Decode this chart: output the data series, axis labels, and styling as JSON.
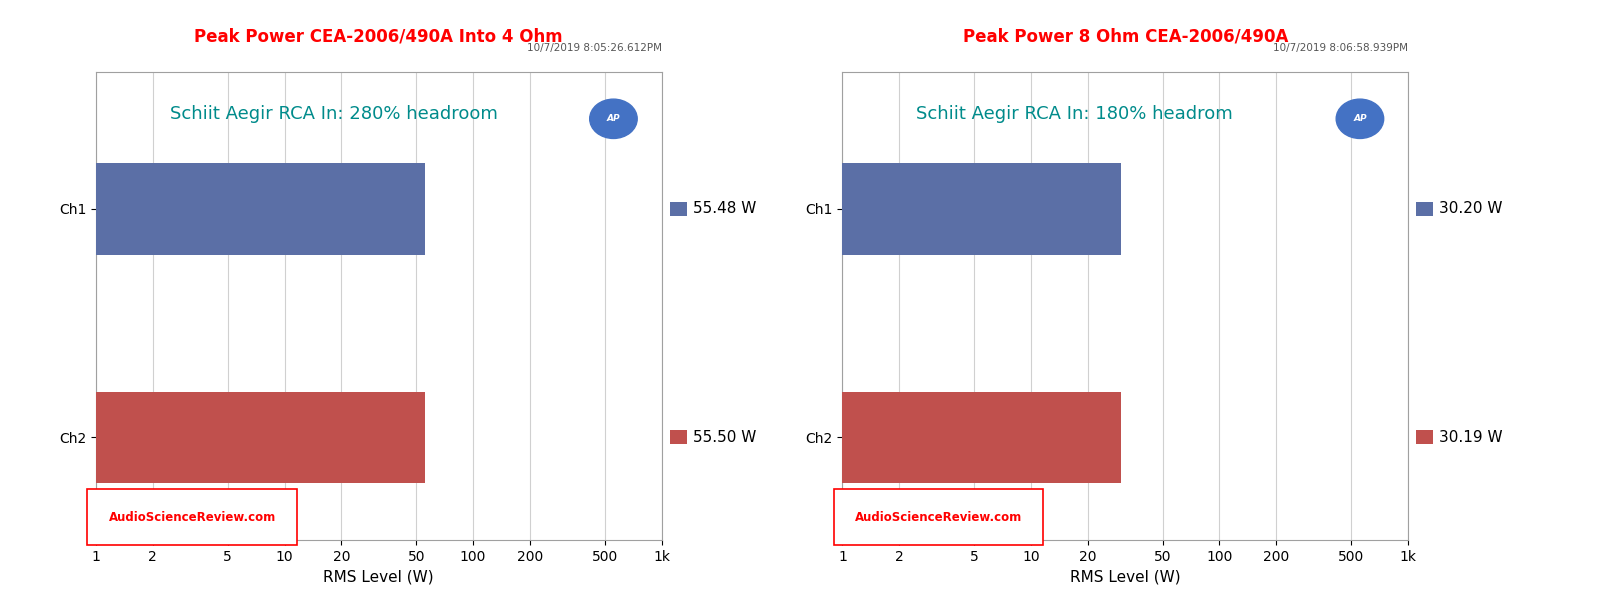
{
  "charts": [
    {
      "title": "Peak Power CEA-2006/490A Into 4 Ohm",
      "datetime": "10/7/2019 8:05:26.612PM",
      "annotation": "Schiit Aegir RCA In: 280% headroom",
      "ch1_value": 55.48,
      "ch2_value": 55.5,
      "ch1_label": "55.48 W",
      "ch2_label": "55.50 W"
    },
    {
      "title": "Peak Power 8 Ohm CEA-2006/490A",
      "datetime": "10/7/2019 8:06:58.939PM",
      "annotation": "Schiit Aegir RCA In: 180% headrom",
      "ch1_value": 30.2,
      "ch2_value": 30.19,
      "ch1_label": "30.20 W",
      "ch2_label": "30.19 W"
    }
  ],
  "title_color": "#FF0000",
  "datetime_color": "#555555",
  "annotation_color": "#008B8B",
  "ch1_color": "#5B6FA6",
  "ch2_color": "#C0504D",
  "watermark_color": "#FF0000",
  "watermark_text": "AudioScienceReview.com",
  "xlabel": "RMS Level (W)",
  "xticks": [
    1,
    2,
    5,
    10,
    20,
    50,
    100,
    200,
    500,
    1000
  ],
  "xtick_labels": [
    "1",
    "2",
    "5",
    "10",
    "20",
    "50",
    "100",
    "200",
    "500",
    "1k"
  ],
  "xlim_min": 1,
  "xlim_max": 1000,
  "bg_color": "#FFFFFF",
  "grid_color": "#D0D0D0",
  "ch1_y": 2,
  "ch2_y": 0,
  "bar_height": 0.8,
  "ylim_min": -0.9,
  "ylim_max": 3.2,
  "title_fontsize": 12,
  "annotation_fontsize": 13,
  "tick_fontsize": 10,
  "label_fontsize": 11,
  "ap_logo_color": "#4472C4"
}
